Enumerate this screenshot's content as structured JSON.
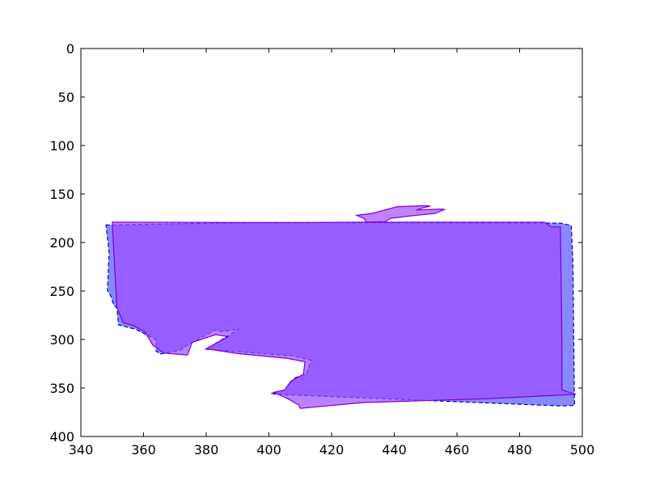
{
  "chart_data": {
    "type": "area",
    "title": "",
    "xlabel": "",
    "ylabel": "",
    "xlim": [
      340,
      500
    ],
    "ylim": [
      400,
      0
    ],
    "y_inverted": true,
    "grid": false,
    "legend": "none",
    "xticks": [
      340,
      360,
      380,
      400,
      420,
      440,
      460,
      480,
      500
    ],
    "yticks": [
      0,
      50,
      100,
      150,
      200,
      250,
      300,
      350,
      400
    ],
    "xtick_labels": [
      "340",
      "360",
      "380",
      "400",
      "420",
      "440",
      "460",
      "480",
      "500"
    ],
    "ytick_labels": [
      "0",
      "50",
      "100",
      "150",
      "200",
      "250",
      "300",
      "350",
      "400"
    ],
    "series": [
      {
        "color": "#5555ff",
        "edge_color": "#0000cc",
        "line_style": "dashed",
        "opacity": 0.7,
        "points": [
          [
            348.0,
            182.0
          ],
          [
            384.0,
            180.0
          ],
          [
            401.5,
            179.5
          ],
          [
            430.0,
            179.5
          ],
          [
            493.0,
            180.0
          ],
          [
            496.5,
            182.5
          ],
          [
            497.0,
            220.0
          ],
          [
            497.5,
            368.0
          ],
          [
            493.0,
            368.5
          ],
          [
            402.0,
            356.5
          ],
          [
            401.0,
            355.5
          ],
          [
            405.0,
            352.0
          ],
          [
            408.0,
            340.0
          ],
          [
            412.0,
            335.0
          ],
          [
            413.5,
            321.5
          ],
          [
            408.0,
            317.0
          ],
          [
            380.0,
            310.0
          ],
          [
            390.5,
            289.0
          ],
          [
            385.0,
            292.0
          ],
          [
            383.0,
            290.0
          ],
          [
            375.0,
            304.0
          ],
          [
            371.5,
            311.0
          ],
          [
            365.5,
            315.0
          ],
          [
            364.0,
            312.0
          ],
          [
            364.0,
            300.0
          ],
          [
            357.5,
            289.5
          ],
          [
            352.0,
            285.0
          ],
          [
            351.5,
            267.5
          ],
          [
            350.5,
            264.5
          ],
          [
            349.5,
            255.0
          ],
          [
            348.5,
            249.5
          ],
          [
            349.0,
            210.0
          ],
          [
            348.0,
            182.0
          ]
        ]
      },
      {
        "color": "#9d4dff",
        "edge_color": "#7700dd",
        "line_style": "solid",
        "opacity": 0.7,
        "points": [
          [
            350.0,
            179.0
          ],
          [
            402.0,
            179.5
          ],
          [
            430.0,
            179.0
          ],
          [
            488.0,
            179.0
          ],
          [
            490.0,
            184.0
          ],
          [
            493.0,
            184.0
          ],
          [
            493.5,
            300.0
          ],
          [
            493.5,
            352.0
          ],
          [
            498.0,
            356.5
          ],
          [
            470.0,
            361.0
          ],
          [
            430.0,
            365.0
          ],
          [
            410.0,
            371.0
          ],
          [
            409.5,
            367.5
          ],
          [
            406.0,
            361.0
          ],
          [
            402.5,
            356.0
          ],
          [
            401.5,
            354.5
          ],
          [
            405.0,
            352.0
          ],
          [
            407.0,
            343.0
          ],
          [
            411.0,
            336.0
          ],
          [
            411.5,
            323.0
          ],
          [
            406.0,
            319.5
          ],
          [
            390.0,
            314.5
          ],
          [
            380.0,
            309.5
          ],
          [
            387.0,
            297.0
          ],
          [
            383.0,
            295.0
          ],
          [
            375.5,
            303.0
          ],
          [
            374.0,
            316.0
          ],
          [
            366.5,
            314.0
          ],
          [
            363.0,
            306.0
          ],
          [
            360.5,
            292.5
          ],
          [
            357.0,
            286.0
          ],
          [
            353.5,
            282.5
          ],
          [
            351.5,
            267.0
          ],
          [
            350.5,
            210.0
          ],
          [
            350.0,
            179.0
          ]
        ]
      },
      {
        "color": "#a84dff",
        "edge_color": "#7700dd",
        "line_style": "solid",
        "opacity": 0.7,
        "points": [
          [
            428.0,
            172.0
          ],
          [
            433.0,
            170.0
          ],
          [
            441.0,
            163.0
          ],
          [
            450.0,
            162.0
          ],
          [
            451.5,
            162.5
          ],
          [
            449.5,
            164.0
          ],
          [
            447.0,
            166.5
          ],
          [
            455.0,
            165.5
          ],
          [
            456.0,
            166.0
          ],
          [
            453.0,
            170.0
          ],
          [
            444.0,
            173.0
          ],
          [
            439.0,
            175.0
          ],
          [
            437.0,
            178.5
          ],
          [
            431.0,
            179.0
          ],
          [
            430.5,
            175.5
          ],
          [
            428.0,
            172.0
          ]
        ]
      }
    ]
  }
}
